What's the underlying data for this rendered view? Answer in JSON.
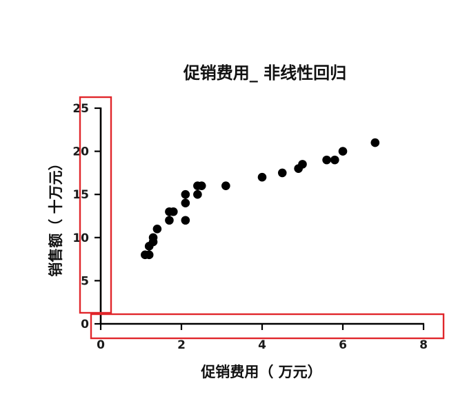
{
  "chart_data": {
    "type": "scatter",
    "title": "促销费用_ 非线性回归",
    "xlabel": "促销费用（ 万元）",
    "ylabel": "销售额（ 十万元）",
    "xlim": [
      0,
      8
    ],
    "ylim": [
      0,
      25
    ],
    "x_ticks": [
      0,
      2,
      4,
      6,
      8
    ],
    "y_ticks": [
      0,
      5,
      10,
      15,
      20,
      25
    ],
    "grid": false,
    "legend": "none",
    "marker_color": "#000000",
    "highlight_color": "#e0262b",
    "highlights": [
      "y-axis",
      "x-axis"
    ],
    "points": [
      {
        "x": 1.1,
        "y": 8
      },
      {
        "x": 1.2,
        "y": 8
      },
      {
        "x": 1.2,
        "y": 9
      },
      {
        "x": 1.3,
        "y": 9.5
      },
      {
        "x": 1.3,
        "y": 10
      },
      {
        "x": 1.4,
        "y": 11
      },
      {
        "x": 1.7,
        "y": 12
      },
      {
        "x": 1.7,
        "y": 13
      },
      {
        "x": 1.8,
        "y": 13
      },
      {
        "x": 2.1,
        "y": 12
      },
      {
        "x": 2.1,
        "y": 14
      },
      {
        "x": 2.1,
        "y": 15
      },
      {
        "x": 2.4,
        "y": 15
      },
      {
        "x": 2.4,
        "y": 16
      },
      {
        "x": 2.5,
        "y": 16
      },
      {
        "x": 3.1,
        "y": 16
      },
      {
        "x": 4.0,
        "y": 17
      },
      {
        "x": 4.5,
        "y": 17.5
      },
      {
        "x": 4.9,
        "y": 18
      },
      {
        "x": 5.0,
        "y": 18.5
      },
      {
        "x": 5.6,
        "y": 19
      },
      {
        "x": 5.8,
        "y": 19
      },
      {
        "x": 6.0,
        "y": 20
      },
      {
        "x": 6.8,
        "y": 21
      }
    ]
  }
}
